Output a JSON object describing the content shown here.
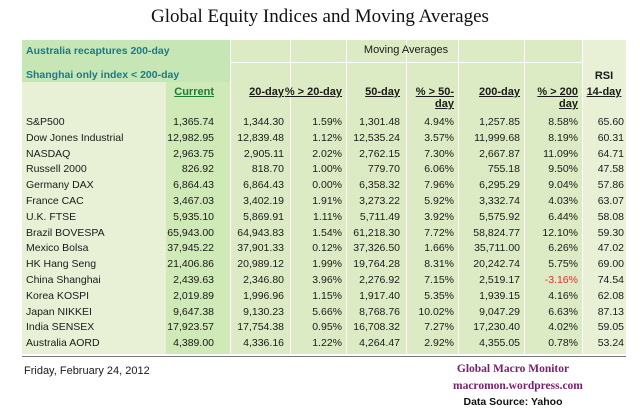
{
  "title": "Global Equity Indices and Moving Averages",
  "notes": [
    "Australia recaptures 200-day",
    "Shanghai only index < 200-day"
  ],
  "moving_averages_title": "Moving Averages",
  "headers": {
    "current": "Current",
    "ma20": "20-day",
    "pct20": "% > 20-day",
    "ma50": "50-day",
    "pct50": "% > 50-day",
    "ma200": "200-day",
    "pct200": "% > 200 day",
    "rsi_top": "RSI",
    "rsi_bottom": "14-day"
  },
  "rows": [
    {
      "name": "S&P500",
      "current": "1,365.74",
      "ma20": "1,344.30",
      "pct20": "1.59%",
      "ma50": "1,301.48",
      "pct50": "4.94%",
      "ma200": "1,257.85",
      "pct200": "8.58%",
      "rsi": "65.60"
    },
    {
      "name": "Dow Jones Industrial",
      "current": "12,982.95",
      "ma20": "12,839.48",
      "pct20": "1.12%",
      "ma50": "12,535.24",
      "pct50": "3.57%",
      "ma200": "11,999.68",
      "pct200": "8.19%",
      "rsi": "60.31"
    },
    {
      "name": "NASDAQ",
      "current": "2,963.75",
      "ma20": "2,905.11",
      "pct20": "2.02%",
      "ma50": "2,762.15",
      "pct50": "7.30%",
      "ma200": "2,667.87",
      "pct200": "11.09%",
      "rsi": "64.71"
    },
    {
      "name": "Russell 2000",
      "current": "826.92",
      "ma20": "818.70",
      "pct20": "1.00%",
      "ma50": "779.70",
      "pct50": "6.06%",
      "ma200": "755.18",
      "pct200": "9.50%",
      "rsi": "47.58"
    },
    {
      "name": "Germany DAX",
      "current": "6,864.43",
      "ma20": "6,864.43",
      "pct20": "0.00%",
      "ma50": "6,358.32",
      "pct50": "7.96%",
      "ma200": "6,295.29",
      "pct200": "9.04%",
      "rsi": "57.86"
    },
    {
      "name": "France CAC",
      "current": "3,467.03",
      "ma20": "3,402.19",
      "pct20": "1.91%",
      "ma50": "3,273.22",
      "pct50": "5.92%",
      "ma200": "3,332.74",
      "pct200": "4.03%",
      "rsi": "63.07"
    },
    {
      "name": "U.K. FTSE",
      "current": "5,935.10",
      "ma20": "5,869.91",
      "pct20": "1.11%",
      "ma50": "5,711.49",
      "pct50": "3.92%",
      "ma200": "5,575.92",
      "pct200": "6.44%",
      "rsi": "58.08"
    },
    {
      "name": "Brazil BOVESPA",
      "current": "65,943.00",
      "ma20": "64,943.83",
      "pct20": "1.54%",
      "ma50": "61,218.30",
      "pct50": "7.72%",
      "ma200": "58,824.77",
      "pct200": "12.10%",
      "rsi": "59.30"
    },
    {
      "name": "Mexico Bolsa",
      "current": "37,945.22",
      "ma20": "37,901.33",
      "pct20": "0.12%",
      "ma50": "37,326.50",
      "pct50": "1.66%",
      "ma200": "35,711.00",
      "pct200": "6.26%",
      "rsi": "47.02"
    },
    {
      "name": "HK  Hang Seng",
      "current": "21,406.86",
      "ma20": "20,989.12",
      "pct20": "1.99%",
      "ma50": "19,764.28",
      "pct50": "8.31%",
      "ma200": "20,242.74",
      "pct200": "5.75%",
      "rsi": "69.00"
    },
    {
      "name": "China Shanghai",
      "current": "2,439.63",
      "ma20": "2,346.80",
      "pct20": "3.96%",
      "ma50": "2,276.92",
      "pct50": "7.15%",
      "ma200": "2,519.17",
      "pct200": "-3.16%",
      "rsi": "74.54"
    },
    {
      "name": "Korea KOSPI",
      "current": "2,019.89",
      "ma20": "1,996.96",
      "pct20": "1.15%",
      "ma50": "1,917.40",
      "pct50": "5.35%",
      "ma200": "1,939.15",
      "pct200": "4.16%",
      "rsi": "62.08"
    },
    {
      "name": "Japan NIKKEI",
      "current": "9,647.38",
      "ma20": "9,130.23",
      "pct20": "5.66%",
      "ma50": "8,768.76",
      "pct50": "10.02%",
      "ma200": "9,047.29",
      "pct200": "6.63%",
      "rsi": "87.13"
    },
    {
      "name": "India SENSEX",
      "current": "17,923.57",
      "ma20": "17,754.38",
      "pct20": "0.95%",
      "ma50": "16,708.32",
      "pct50": "7.27%",
      "ma200": "17,230.40",
      "pct200": "4.02%",
      "rsi": "59.05"
    },
    {
      "name": "Australia AORD",
      "current": "4,389.00",
      "ma20": "4,336.16",
      "pct20": "1.22%",
      "ma50": "4,264.47",
      "pct50": "2.92%",
      "ma200": "4,355.05",
      "pct200": "0.78%",
      "rsi": "53.24"
    }
  ],
  "footer": {
    "date": "Friday, February 24, 2012",
    "brand_line1": "Global Macro Monitor",
    "brand_line2": "macromon.wordpress.com",
    "source": "Data Source: Yahoo"
  },
  "colors": {
    "negative": "#e03030",
    "brand": "#7a1f6e",
    "note": "#1a7a8a",
    "current_header": "#1f7a3a"
  }
}
